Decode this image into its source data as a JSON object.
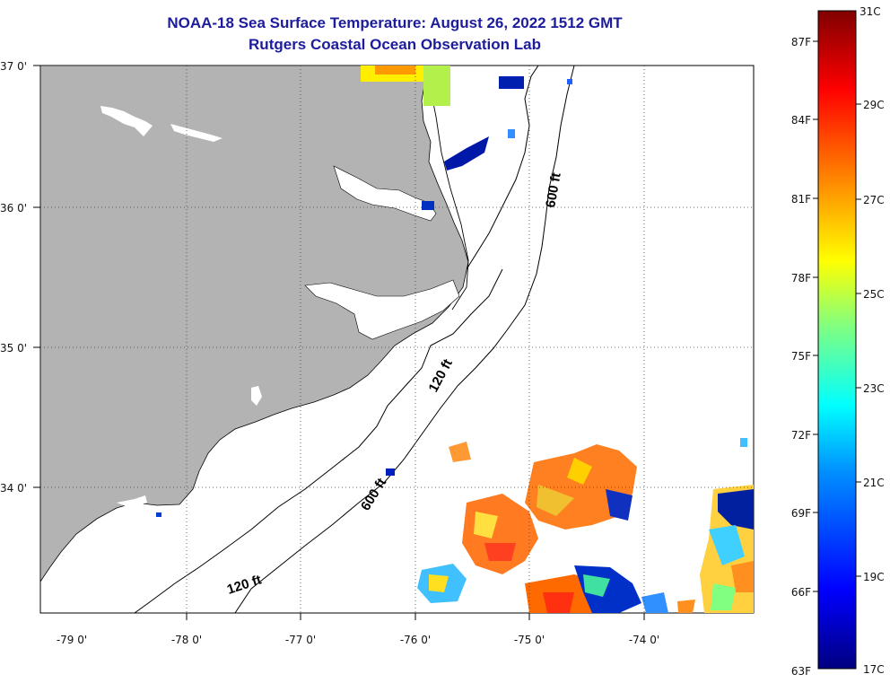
{
  "title": "NOAA-18 Sea Surface Temperature:  August 26, 2022 1512 GMT",
  "subtitle": "Rutgers Coastal Ocean Observation Lab",
  "map": {
    "lon_ticks": [
      "-79 0'",
      "-78 0'",
      "-77 0'",
      "-76 0'",
      "-75 0'",
      "-74 0'"
    ],
    "lat_ticks": [
      "37 0'",
      "36 0'",
      "35 0'",
      "34 0'"
    ],
    "isobath_labels": [
      "600 ft",
      "120 ft",
      "600 ft",
      "120 ft"
    ],
    "land_color": "#b3b3b3",
    "coast_color": "#000000"
  },
  "colorbar": {
    "fahrenheit": [
      "87F",
      "84F",
      "81F",
      "78F",
      "75F",
      "72F",
      "69F",
      "66F",
      "63F"
    ],
    "celsius": [
      "31C",
      "29C",
      "27C",
      "25C",
      "23C",
      "21C",
      "19C",
      "17C"
    ],
    "colors": [
      "#000080",
      "#0000ff",
      "#0080ff",
      "#00ffff",
      "#80ff80",
      "#ffff00",
      "#ff8000",
      "#ff0000",
      "#800000"
    ]
  }
}
